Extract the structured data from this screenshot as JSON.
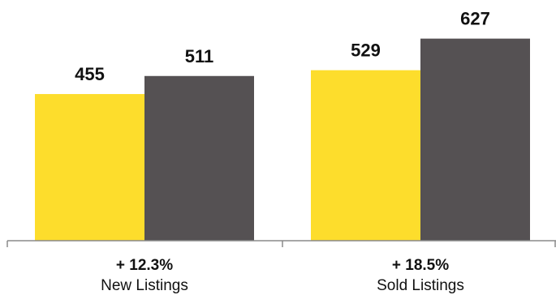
{
  "chart_data": {
    "type": "bar",
    "categories": [
      "New Listings",
      "Sold Listings"
    ],
    "change_labels": [
      "+ 12.3%",
      "+ 18.5%"
    ],
    "series": [
      {
        "values": [
          455,
          529
        ],
        "color": "#FDDD2C"
      },
      {
        "values": [
          511,
          627
        ],
        "color": "#555153"
      }
    ],
    "ylim": [
      0,
      700
    ],
    "grid": false,
    "legend": "none"
  }
}
